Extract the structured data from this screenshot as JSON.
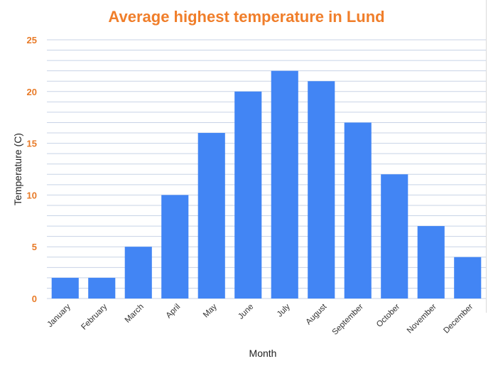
{
  "chart_data": {
    "type": "bar",
    "title": "Average highest temperature in Lund",
    "xlabel": "Month",
    "ylabel": "Temperature (C)",
    "categories": [
      "January",
      "February",
      "March",
      "April",
      "May",
      "June",
      "July",
      "August",
      "September",
      "October",
      "November",
      "December"
    ],
    "values": [
      2,
      2,
      5,
      10,
      16,
      20,
      22,
      21,
      17,
      12,
      7,
      4
    ],
    "ylim": [
      0,
      25
    ],
    "yticks": [
      0,
      5,
      10,
      15,
      20,
      25
    ],
    "minor_gridlines": true,
    "legend": "none"
  },
  "colors": {
    "bar": "#4285F4",
    "title": "#F07E2A",
    "ytick": "#E87A27",
    "grid": "#C8D3E6"
  }
}
